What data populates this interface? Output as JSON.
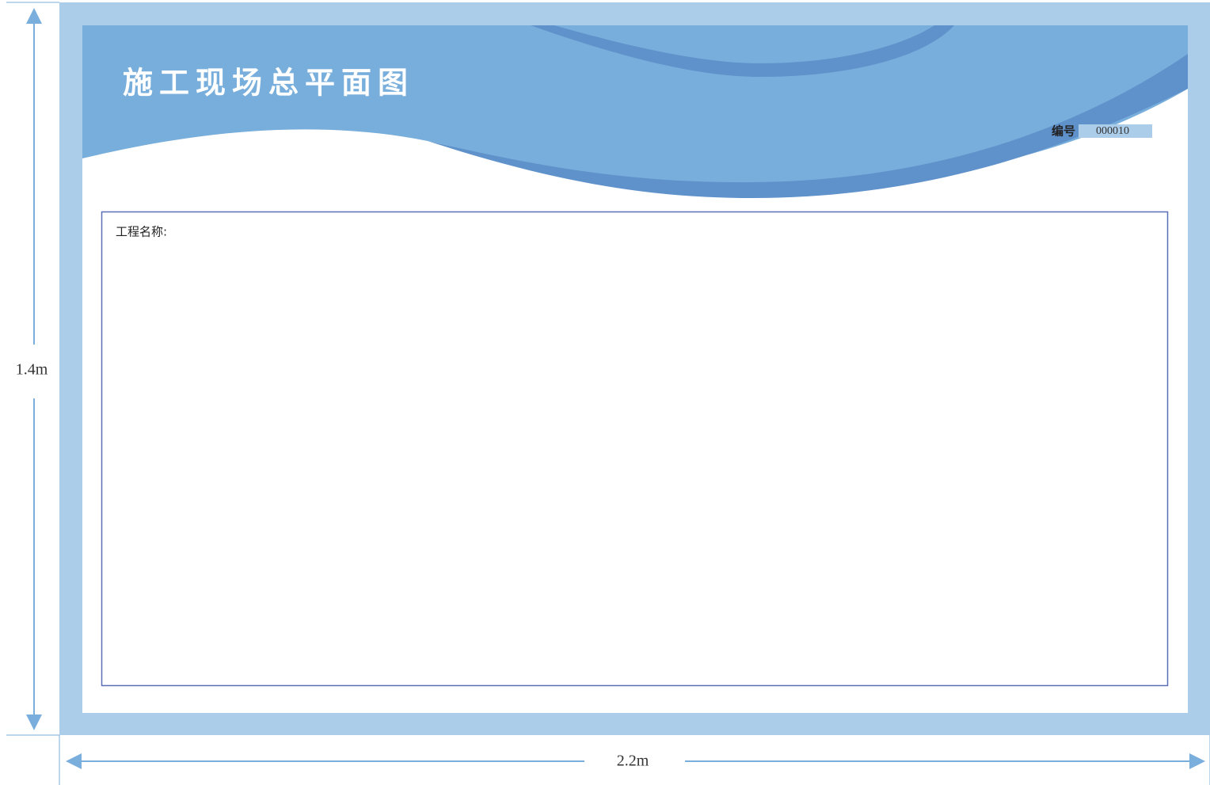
{
  "board": {
    "title": "施工现场总平面图",
    "number_label": "编号",
    "number": "000010",
    "project_name_label": "工程名称:"
  },
  "dimensions": {
    "height": "1.4m",
    "width": "2.2m"
  }
}
